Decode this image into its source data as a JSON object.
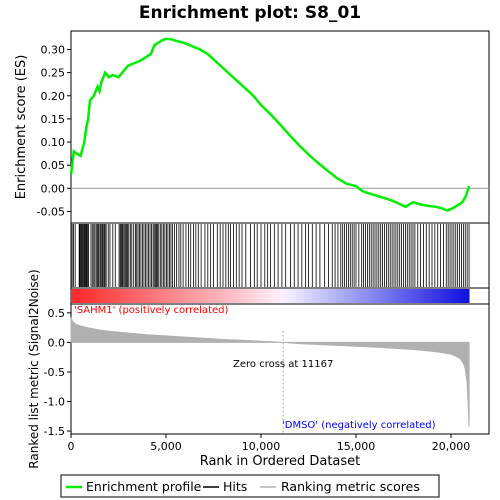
{
  "chart_data": {
    "type": "line",
    "title": "Enrichment plot: S8_01",
    "xlabel": "Rank in Ordered Dataset",
    "xlim": [
      0,
      22000
    ],
    "x_ticks": [
      0,
      5000,
      10000,
      15000,
      20000
    ],
    "x_tick_labels": [
      "0",
      "5,000",
      "10,000",
      "15,000",
      "20,000"
    ],
    "panels": {
      "es": {
        "ylabel": "Enrichment score (ES)",
        "ylim": [
          -0.075,
          0.34
        ],
        "y_ticks": [
          -0.05,
          0.0,
          0.05,
          0.1,
          0.15,
          0.2,
          0.25,
          0.3
        ],
        "y_tick_labels": [
          "-0.05",
          "0.00",
          "0.05",
          "0.10",
          "0.15",
          "0.20",
          "0.25",
          "0.30"
        ],
        "series_name": "Enrichment profile",
        "color": "#00ee00",
        "x": [
          0,
          150,
          300,
          500,
          700,
          800,
          900,
          1000,
          1200,
          1400,
          1500,
          1600,
          1800,
          2000,
          2200,
          2500,
          2800,
          3000,
          3300,
          3600,
          3800,
          4000,
          4200,
          4400,
          4600,
          4800,
          5000,
          5300,
          5600,
          5900,
          6200,
          6500,
          6800,
          7200,
          7600,
          8000,
          8400,
          8800,
          9200,
          9600,
          10000,
          10500,
          11000,
          11500,
          12000,
          12500,
          13000,
          13500,
          14000,
          14500,
          15000,
          15300,
          15600,
          16000,
          16400,
          16800,
          17200,
          17600,
          18000,
          18400,
          18800,
          19200,
          19500,
          19800,
          20000,
          20300,
          20600,
          20800,
          20950
        ],
        "y": [
          0.03,
          0.08,
          0.075,
          0.07,
          0.1,
          0.13,
          0.15,
          0.19,
          0.2,
          0.22,
          0.21,
          0.23,
          0.25,
          0.24,
          0.245,
          0.24,
          0.255,
          0.265,
          0.27,
          0.275,
          0.28,
          0.285,
          0.29,
          0.31,
          0.315,
          0.32,
          0.323,
          0.322,
          0.318,
          0.315,
          0.31,
          0.305,
          0.3,
          0.29,
          0.275,
          0.26,
          0.245,
          0.23,
          0.215,
          0.2,
          0.18,
          0.16,
          0.138,
          0.115,
          0.093,
          0.073,
          0.055,
          0.038,
          0.022,
          0.01,
          0.005,
          -0.005,
          -0.01,
          -0.015,
          -0.02,
          -0.025,
          -0.032,
          -0.04,
          -0.03,
          -0.035,
          -0.038,
          -0.04,
          -0.043,
          -0.048,
          -0.045,
          -0.038,
          -0.03,
          -0.015,
          0.005
        ],
        "zero_line": 0.0
      },
      "hits": {
        "series_name": "Hits",
        "ranks": [
          60,
          130,
          220,
          430,
          470,
          520,
          560,
          600,
          650,
          700,
          740,
          790,
          830,
          880,
          920,
          1050,
          1120,
          1200,
          1260,
          1330,
          1400,
          1450,
          1520,
          1570,
          1630,
          1680,
          1740,
          1790,
          1850,
          1960,
          2050,
          2200,
          2330,
          2530,
          2590,
          2640,
          2690,
          2740,
          2800,
          2860,
          2920,
          2980,
          3040,
          3120,
          3200,
          3300,
          3390,
          3460,
          3530,
          3600,
          3680,
          3760,
          3840,
          3920,
          4000,
          4080,
          4160,
          4240,
          4320,
          4380,
          4440,
          4500,
          4560,
          4620,
          4700,
          4780,
          4860,
          4940,
          5020,
          5100,
          5180,
          5260,
          5340,
          5450,
          5560,
          5680,
          5780,
          5900,
          6050,
          6180,
          6300,
          6450,
          6570,
          6700,
          6850,
          7050,
          7200,
          7350,
          7500,
          7700,
          7850,
          8000,
          8150,
          8280,
          8400,
          8550,
          8700,
          8850,
          9000,
          9200,
          9450,
          9650,
          9800,
          10000,
          10200,
          10350,
          10500,
          10700,
          10900,
          11100,
          11300,
          11550,
          11750,
          11950,
          12150,
          12350,
          12500,
          12700,
          12900,
          13100,
          13350,
          13550,
          13750,
          13900,
          14050,
          14200,
          14300,
          14400,
          14500,
          14600,
          14700,
          14800,
          14900,
          15000,
          15150,
          15300,
          15400,
          15500,
          15600,
          15700,
          15800,
          15900,
          16000,
          16100,
          16200,
          16300,
          16400,
          16500,
          16600,
          16700,
          16800,
          16900,
          17000,
          17100,
          17200,
          17300,
          17400,
          17500,
          17600,
          17700,
          17800,
          17900,
          18000,
          18100,
          18250,
          18400,
          18550,
          18700,
          18850,
          19000,
          19150,
          19300,
          19450,
          19600,
          19750,
          19850,
          19950,
          20050,
          20150,
          20250,
          20350,
          20450,
          20550,
          20650,
          20750,
          20850,
          20950
        ]
      },
      "metric": {
        "ylabel": "Ranked list metric (Signal2Noise)",
        "series_name": "Ranking metric scores",
        "ylim": [
          -1.55,
          0.65
        ],
        "y_ticks": [
          -1.5,
          -1.0,
          -0.5,
          0.0,
          0.5
        ],
        "y_tick_labels": [
          "-1.5",
          "-1.0",
          "-0.5",
          "0.0",
          "0.5"
        ],
        "x": [
          0,
          100,
          300,
          600,
          1000,
          1500,
          2000,
          3000,
          4000,
          5000,
          6000,
          7000,
          8000,
          9000,
          10000,
          11167,
          12000,
          13000,
          14000,
          15000,
          16000,
          17000,
          18000,
          19000,
          19500,
          20000,
          20300,
          20500,
          20650,
          20750,
          20850,
          20950
        ],
        "y": [
          0.42,
          0.34,
          0.3,
          0.27,
          0.24,
          0.21,
          0.19,
          0.16,
          0.13,
          0.11,
          0.09,
          0.07,
          0.05,
          0.035,
          0.02,
          0.0,
          -0.02,
          -0.035,
          -0.05,
          -0.065,
          -0.08,
          -0.1,
          -0.12,
          -0.15,
          -0.17,
          -0.2,
          -0.24,
          -0.28,
          -0.35,
          -0.45,
          -0.7,
          -1.42
        ],
        "color": "#b0b0b0",
        "zero_cross_rank": 11167,
        "zero_cross_label": "Zero cross at 11167",
        "pos_label": "'SAHM1' (positively correlated)",
        "pos_color": "#ff0000",
        "neg_label": "'DMSO' (negatively correlated)",
        "neg_color": "#0000ff"
      }
    },
    "legend": {
      "placement": "bottom",
      "items": [
        {
          "label": "Enrichment profile",
          "color": "#00ee00"
        },
        {
          "label": "Hits",
          "color": "#000000"
        },
        {
          "label": "Ranking metric scores",
          "color": "#b0b0b0"
        }
      ]
    }
  }
}
